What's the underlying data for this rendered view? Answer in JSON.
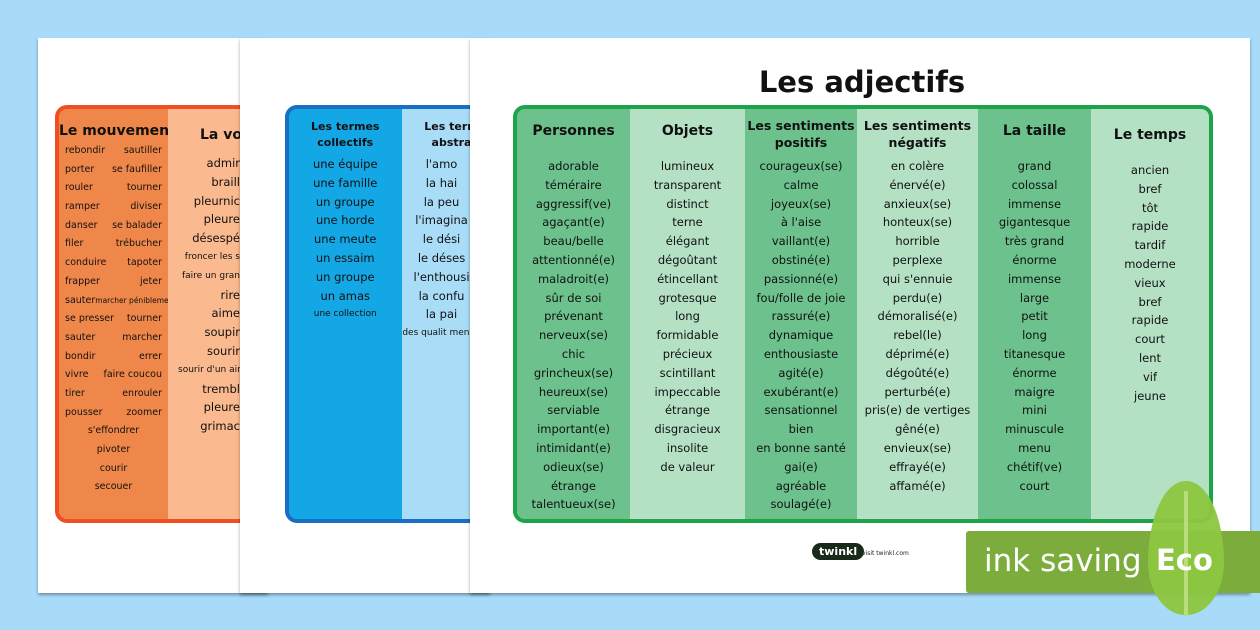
{
  "sheet_movement": {
    "col1_title": "Le mouvement",
    "col1_pairs": [
      [
        "rebondir",
        "sautiller"
      ],
      [
        "porter",
        "se faufiller"
      ],
      [
        "rouler",
        "tourner"
      ],
      [
        "ramper",
        "diviser"
      ],
      [
        "danser",
        "se balader"
      ],
      [
        "filer",
        "trébucher"
      ],
      [
        "conduire",
        "tapoter"
      ],
      [
        "frapper",
        "jeter"
      ],
      [
        "sauter",
        "marcher péniblement"
      ],
      [
        "se presser",
        "tourner"
      ],
      [
        "sauter",
        "marcher"
      ],
      [
        "bondir",
        "errer"
      ],
      [
        "vivre",
        "faire coucou"
      ],
      [
        "tirer",
        "enrouler"
      ],
      [
        "pousser",
        "zoomer"
      ],
      [
        "s'effondrer",
        ""
      ],
      [
        "pivoter",
        ""
      ],
      [
        "courir",
        ""
      ],
      [
        "secouer",
        ""
      ]
    ],
    "col2_title": "La vo",
    "col2_words": [
      "admir",
      "braill",
      "pleurnic",
      "pleure",
      "désespé",
      "froncer les s",
      "faire un gran",
      "rire",
      "aime",
      "soupir",
      "sourir",
      "sourir d'un air",
      "trembl",
      "pleure",
      "grimac"
    ]
  },
  "sheet_nouns": {
    "col1_title": "Les termes collectifs",
    "col1_words": [
      "une équipe",
      "une famille",
      "un groupe",
      "une horde",
      "une meute",
      "un essaim",
      "un groupe",
      "un amas",
      "une collection"
    ],
    "col2_title": "Les term abstra",
    "col2_words": [
      "l'amo",
      "la hai",
      "la peu",
      "l'imagina",
      "le dési",
      "le déses",
      "l'enthousi",
      "la confu",
      "la pai",
      "des qualit meneu"
    ]
  },
  "sheet_adjectives": {
    "title": "Les adjectifs",
    "columns": [
      {
        "title": "Personnes",
        "words": [
          "adorable",
          "téméraire",
          "aggressif(ve)",
          "agaçant(e)",
          "beau/belle",
          "attentionné(e)",
          "maladroit(e)",
          "sûr de soi",
          "prévenant",
          "nerveux(se)",
          "chic",
          "grincheux(se)",
          "heureux(se)",
          "serviable",
          "important(e)",
          "intimidant(e)",
          "odieux(se)",
          "étrange",
          "talentueux(se)"
        ]
      },
      {
        "title": "Objets",
        "words": [
          "lumineux",
          "transparent",
          "distinct",
          "terne",
          "élégant",
          "dégoûtant",
          "étincellant",
          "grotesque",
          "long",
          "formidable",
          "précieux",
          "scintillant",
          "impeccable",
          "étrange",
          "disgracieux",
          "insolite",
          "de valeur"
        ]
      },
      {
        "title": "Les sentiments positifs",
        "words": [
          "courageux(se)",
          "calme",
          "joyeux(se)",
          "à l'aise",
          "vaillant(e)",
          "obstiné(e)",
          "passionné(e)",
          "fou/folle de joie",
          "rassuré(e)",
          "dynamique",
          "enthousiaste",
          "agité(e)",
          "exubérant(e)",
          "sensationnel",
          "bien",
          "en bonne santé",
          "gai(e)",
          "agréable",
          "soulagé(e)"
        ]
      },
      {
        "title": "Les sentiments négatifs",
        "words": [
          "en colère",
          "énervé(e)",
          "anxieux(se)",
          "honteux(se)",
          "horrible",
          "perplexe",
          "qui s'ennuie",
          "perdu(e)",
          "démoralisé(e)",
          "rebel(le)",
          "déprimé(e)",
          "dégoûté(e)",
          "perturbé(e)",
          "pris(e) de vertiges",
          "gêné(e)",
          "envieux(se)",
          "effrayé(e)",
          "affamé(e)"
        ]
      },
      {
        "title": "La taille",
        "words": [
          "grand",
          "colossal",
          "immense",
          "gigantesque",
          "très grand",
          "énorme",
          "immense",
          "large",
          "petit",
          "long",
          "titanesque",
          "énorme",
          "maigre",
          "mini",
          "minuscule",
          "menu",
          "chétif(ve)",
          "court"
        ]
      },
      {
        "title": "Le temps",
        "words": [
          "ancien",
          "bref",
          "tôt",
          "rapide",
          "tardif",
          "moderne",
          "vieux",
          "bref",
          "rapide",
          "court",
          "lent",
          "vif",
          "jeune"
        ]
      }
    ],
    "logo": "twinkl",
    "footer": "visit twinkl.com"
  },
  "eco_badge": {
    "text": "ink saving",
    "label": "Eco"
  },
  "colors": {
    "background": "#a8dbfa",
    "orange_dark": "#f0874a",
    "orange_light": "#fbb98f",
    "orange_border": "#f04e23",
    "blue_dark": "#14a7e6",
    "blue_light": "#a8dcf7",
    "blue_border": "#1b6fc2",
    "green_dark": "#6cc18c",
    "green_light": "#b4e0c4",
    "green_border": "#1ea34a",
    "eco_green": "#7cad3c"
  }
}
